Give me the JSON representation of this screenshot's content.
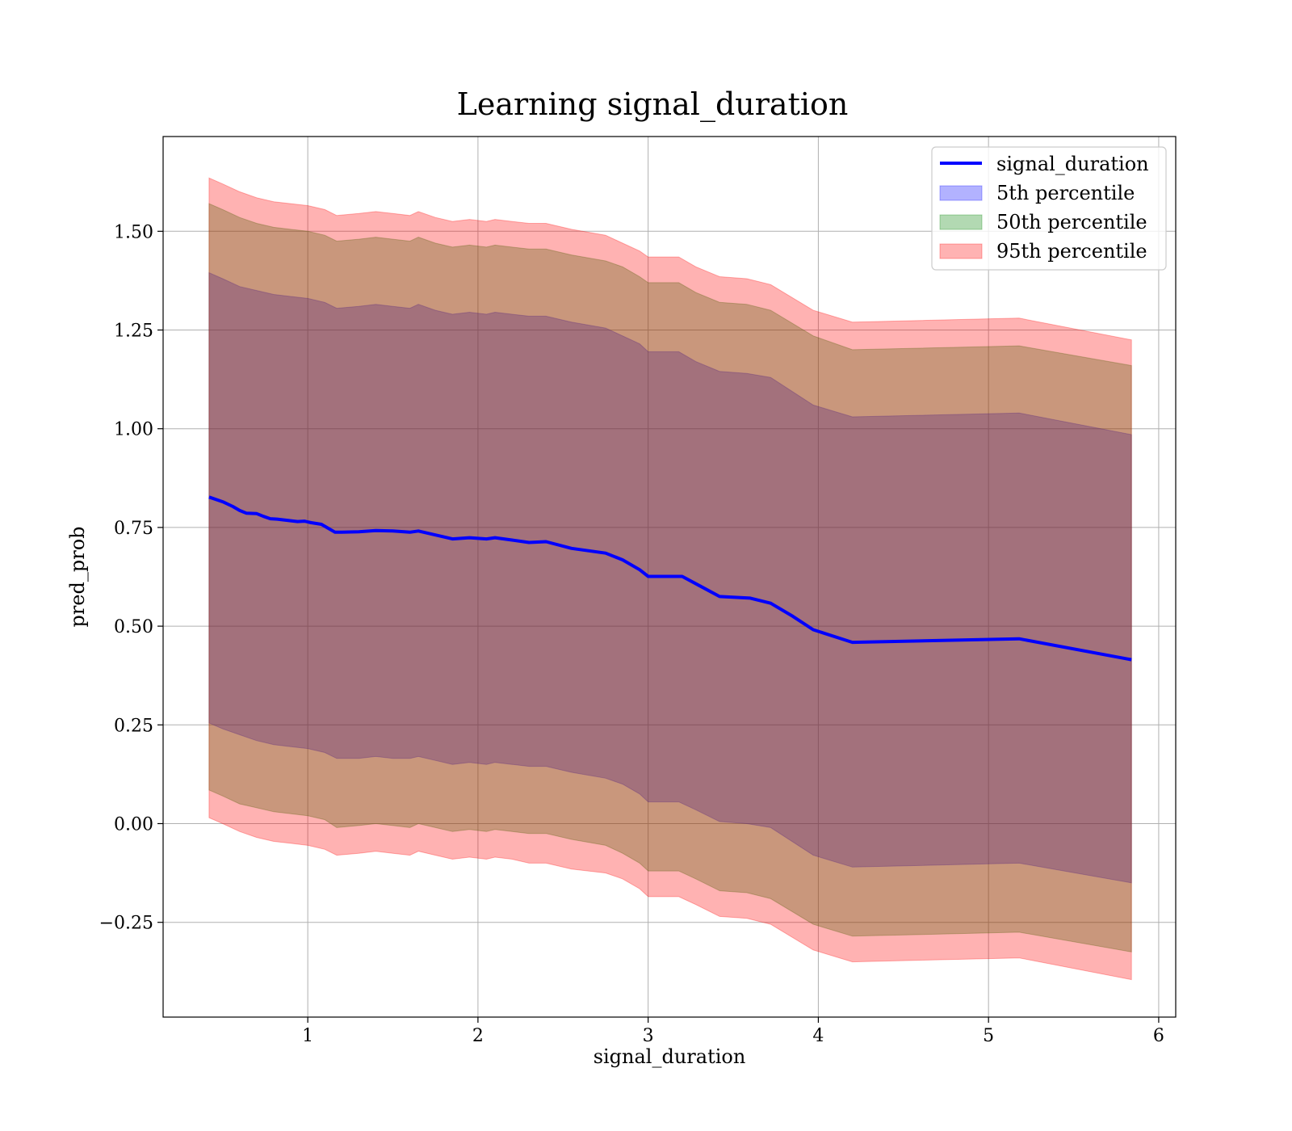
{
  "chart_data": {
    "type": "area",
    "title": "Learning signal_duration",
    "xlabel": "signal_duration",
    "ylabel": "pred_prob",
    "xlim": [
      0.15,
      6.1
    ],
    "ylim": [
      -0.49,
      1.74
    ],
    "xticks": [
      1,
      2,
      3,
      4,
      5,
      6
    ],
    "xtick_labels": [
      "1",
      "2",
      "3",
      "4",
      "5",
      "6"
    ],
    "yticks": [
      -0.25,
      0.0,
      0.25,
      0.5,
      0.75,
      1.0,
      1.25,
      1.5
    ],
    "ytick_labels": [
      "−0.25",
      "0.00",
      "0.25",
      "0.50",
      "0.75",
      "1.00",
      "1.25",
      "1.50"
    ],
    "grid": true,
    "legend_position": "top-right",
    "colors": {
      "line": "#0000ff",
      "band_5th": "#0000ff",
      "band_50th": "#008000",
      "band_95th": "#ff0000"
    },
    "line_series": {
      "name": "signal_duration",
      "x": [
        0.42,
        0.5,
        0.56,
        0.6,
        0.64,
        0.7,
        0.74,
        0.78,
        0.82,
        0.88,
        0.94,
        0.98,
        1.02,
        1.08,
        1.12,
        1.16,
        1.2,
        1.3,
        1.4,
        1.5,
        1.6,
        1.65,
        1.75,
        1.85,
        1.95,
        2.05,
        2.1,
        2.2,
        2.3,
        2.35,
        2.4,
        2.55,
        2.75,
        2.85,
        2.95,
        3.0,
        3.2,
        3.3,
        3.42,
        3.6,
        3.72,
        3.85,
        3.97,
        4.2,
        5.18,
        5.84
      ],
      "y": [
        0.827,
        0.815,
        0.803,
        0.793,
        0.786,
        0.785,
        0.778,
        0.772,
        0.771,
        0.768,
        0.765,
        0.766,
        0.762,
        0.758,
        0.748,
        0.738,
        0.738,
        0.739,
        0.742,
        0.741,
        0.738,
        0.741,
        0.731,
        0.721,
        0.724,
        0.721,
        0.724,
        0.718,
        0.712,
        0.713,
        0.714,
        0.697,
        0.685,
        0.668,
        0.643,
        0.626,
        0.626,
        0.603,
        0.575,
        0.571,
        0.558,
        0.525,
        0.491,
        0.459,
        0.468,
        0.415
      ]
    },
    "bands": [
      {
        "name": "5th percentile",
        "x": [
          0.42,
          0.5,
          0.6,
          0.7,
          0.8,
          0.9,
          1.0,
          1.1,
          1.17,
          1.3,
          1.4,
          1.5,
          1.6,
          1.65,
          1.75,
          1.85,
          1.95,
          2.05,
          2.1,
          2.2,
          2.3,
          2.4,
          2.55,
          2.75,
          2.85,
          2.95,
          3.0,
          3.18,
          3.28,
          3.42,
          3.58,
          3.72,
          3.97,
          4.2,
          5.18,
          5.84
        ],
        "upper": [
          1.395,
          1.38,
          1.36,
          1.35,
          1.34,
          1.335,
          1.33,
          1.32,
          1.305,
          1.31,
          1.315,
          1.31,
          1.305,
          1.315,
          1.3,
          1.29,
          1.295,
          1.29,
          1.295,
          1.29,
          1.285,
          1.285,
          1.27,
          1.255,
          1.235,
          1.215,
          1.195,
          1.195,
          1.17,
          1.145,
          1.14,
          1.13,
          1.06,
          1.03,
          1.04,
          0.985
        ],
        "lower": [
          0.255,
          0.24,
          0.225,
          0.21,
          0.2,
          0.195,
          0.19,
          0.18,
          0.165,
          0.165,
          0.17,
          0.165,
          0.165,
          0.17,
          0.16,
          0.15,
          0.155,
          0.15,
          0.155,
          0.15,
          0.145,
          0.145,
          0.13,
          0.115,
          0.1,
          0.075,
          0.055,
          0.055,
          0.035,
          0.005,
          0.0,
          -0.01,
          -0.08,
          -0.11,
          -0.1,
          -0.15
        ]
      },
      {
        "name": "50th percentile",
        "x": [
          0.42,
          0.5,
          0.6,
          0.7,
          0.8,
          0.9,
          1.0,
          1.1,
          1.17,
          1.3,
          1.4,
          1.5,
          1.6,
          1.65,
          1.75,
          1.85,
          1.95,
          2.05,
          2.1,
          2.2,
          2.3,
          2.4,
          2.55,
          2.75,
          2.85,
          2.95,
          3.0,
          3.18,
          3.28,
          3.42,
          3.58,
          3.72,
          3.97,
          4.2,
          5.18,
          5.84
        ],
        "upper": [
          1.57,
          1.555,
          1.535,
          1.52,
          1.51,
          1.505,
          1.5,
          1.49,
          1.475,
          1.48,
          1.485,
          1.48,
          1.475,
          1.485,
          1.47,
          1.46,
          1.465,
          1.46,
          1.465,
          1.46,
          1.455,
          1.455,
          1.44,
          1.425,
          1.41,
          1.385,
          1.37,
          1.37,
          1.345,
          1.32,
          1.315,
          1.3,
          1.235,
          1.2,
          1.21,
          1.16
        ],
        "lower": [
          0.085,
          0.07,
          0.05,
          0.04,
          0.03,
          0.025,
          0.02,
          0.01,
          -0.01,
          -0.005,
          0.0,
          -0.005,
          -0.01,
          0.0,
          -0.01,
          -0.02,
          -0.015,
          -0.02,
          -0.015,
          -0.02,
          -0.025,
          -0.025,
          -0.04,
          -0.055,
          -0.075,
          -0.1,
          -0.12,
          -0.12,
          -0.14,
          -0.17,
          -0.175,
          -0.19,
          -0.255,
          -0.285,
          -0.275,
          -0.325
        ]
      },
      {
        "name": "95th percentile",
        "x": [
          0.42,
          0.5,
          0.6,
          0.7,
          0.8,
          0.9,
          1.0,
          1.1,
          1.17,
          1.3,
          1.4,
          1.5,
          1.6,
          1.65,
          1.75,
          1.85,
          1.95,
          2.05,
          2.1,
          2.2,
          2.3,
          2.4,
          2.55,
          2.75,
          2.85,
          2.95,
          3.0,
          3.18,
          3.28,
          3.42,
          3.58,
          3.72,
          3.97,
          4.2,
          5.18,
          5.84
        ],
        "upper": [
          1.635,
          1.62,
          1.6,
          1.585,
          1.575,
          1.57,
          1.565,
          1.555,
          1.54,
          1.545,
          1.55,
          1.545,
          1.54,
          1.55,
          1.535,
          1.525,
          1.53,
          1.525,
          1.53,
          1.525,
          1.52,
          1.52,
          1.505,
          1.49,
          1.47,
          1.45,
          1.435,
          1.435,
          1.41,
          1.385,
          1.38,
          1.365,
          1.3,
          1.27,
          1.28,
          1.225
        ],
        "lower": [
          0.015,
          0.0,
          -0.02,
          -0.035,
          -0.045,
          -0.05,
          -0.055,
          -0.065,
          -0.08,
          -0.075,
          -0.07,
          -0.075,
          -0.08,
          -0.07,
          -0.08,
          -0.09,
          -0.085,
          -0.09,
          -0.085,
          -0.09,
          -0.1,
          -0.1,
          -0.115,
          -0.125,
          -0.14,
          -0.165,
          -0.185,
          -0.185,
          -0.205,
          -0.235,
          -0.24,
          -0.255,
          -0.32,
          -0.35,
          -0.34,
          -0.395
        ]
      }
    ],
    "legend": [
      {
        "label": "signal_duration",
        "kind": "line"
      },
      {
        "label": "5th percentile",
        "kind": "band"
      },
      {
        "label": "50th percentile",
        "kind": "band"
      },
      {
        "label": "95th percentile",
        "kind": "band"
      }
    ]
  }
}
